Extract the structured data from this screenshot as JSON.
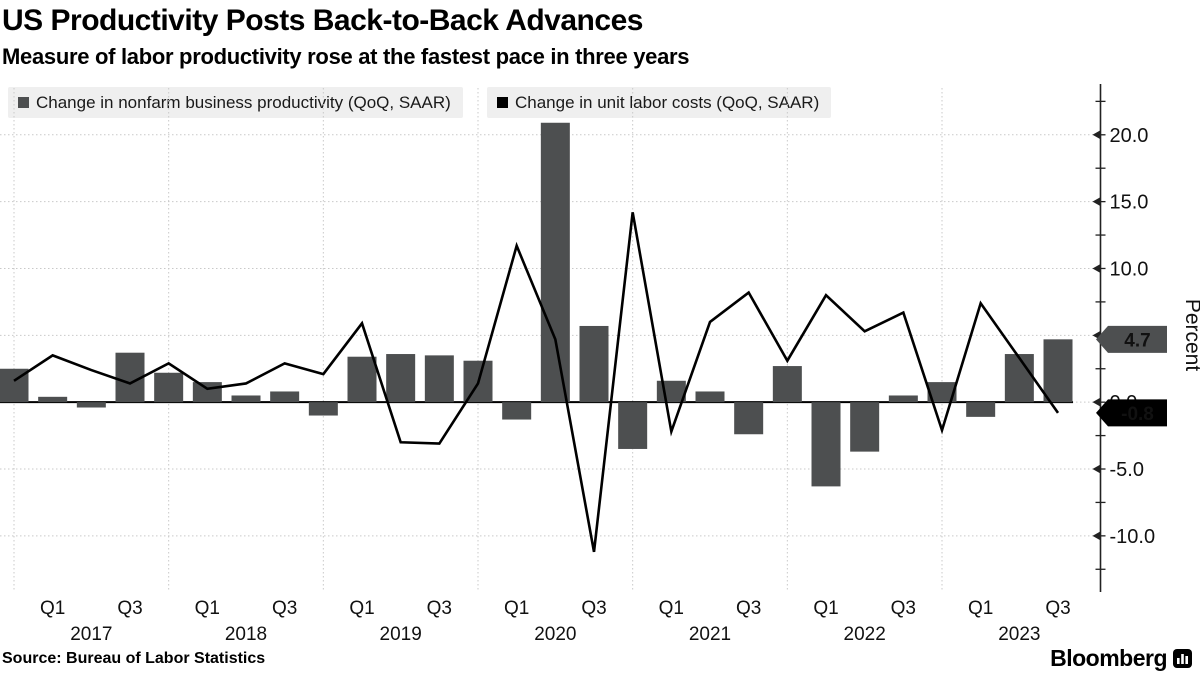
{
  "header": {
    "title": "US Productivity Posts Back-to-Back Advances",
    "subtitle": "Measure of labor productivity rose at the fastest pace in three years"
  },
  "legend": {
    "items": [
      {
        "label": "Change in nonfarm business productivity (QoQ, SAAR)",
        "color": "#4d4f50"
      },
      {
        "label": "Change in unit labor costs (QoQ, SAAR)",
        "color": "#000000"
      }
    ]
  },
  "chart_data": {
    "type": "bar+line",
    "title": "US Productivity Posts Back-to-Back Advances",
    "ylabel": "Percent",
    "ylim": [
      -14.2,
      23.5
    ],
    "grid": true,
    "legend_position": "top",
    "x": [
      "Q4 2016",
      "Q1 2017",
      "Q2 2017",
      "Q3 2017",
      "Q4 2017",
      "Q1 2018",
      "Q2 2018",
      "Q3 2018",
      "Q4 2018",
      "Q1 2019",
      "Q2 2019",
      "Q3 2019",
      "Q4 2019",
      "Q1 2020",
      "Q2 2020",
      "Q3 2020",
      "Q4 2020",
      "Q1 2021",
      "Q2 2021",
      "Q3 2021",
      "Q4 2021",
      "Q1 2022",
      "Q2 2022",
      "Q3 2022",
      "Q4 2022",
      "Q1 2023",
      "Q2 2023",
      "Q3 2023"
    ],
    "series": [
      {
        "name": "Change in nonfarm business productivity (QoQ, SAAR)",
        "type": "bar",
        "color": "#4d4f50",
        "values": [
          2.5,
          0.4,
          -0.4,
          3.7,
          2.2,
          1.5,
          0.5,
          0.8,
          -1.0,
          3.4,
          3.6,
          3.5,
          3.1,
          -1.3,
          20.9,
          5.7,
          -3.5,
          1.6,
          0.8,
          -2.4,
          2.7,
          -6.3,
          -3.7,
          0.5,
          1.5,
          -1.1,
          3.6,
          4.7
        ]
      },
      {
        "name": "Change in unit labor costs (QoQ, SAAR)",
        "type": "line",
        "color": "#000000",
        "values": [
          1.6,
          3.5,
          2.4,
          1.4,
          2.9,
          1.0,
          1.4,
          2.9,
          2.1,
          5.9,
          -3.0,
          -3.1,
          1.4,
          11.7,
          4.7,
          -11.2,
          14.2,
          -2.2,
          6.0,
          8.2,
          3.1,
          8.0,
          5.3,
          6.7,
          -2.1,
          7.4,
          3.3,
          -0.8
        ]
      }
    ],
    "yticks": [
      {
        "label": "20.0",
        "value": 20
      },
      {
        "label": "15.0",
        "value": 15
      },
      {
        "label": "10.0",
        "value": 10
      },
      {
        "label": "5.0",
        "value": 5
      },
      {
        "label": "0.0",
        "value": 0
      },
      {
        "label": "-5.0",
        "value": -5
      },
      {
        "label": "-10.0",
        "value": -10
      }
    ],
    "minor_tick_values": [
      22.5,
      17.5,
      12.5,
      7.5,
      2.5,
      -2.5,
      -7.5,
      -12.5
    ],
    "x_axis": {
      "tick_labels": [
        {
          "label": "Q1",
          "i": 1
        },
        {
          "label": "Q3",
          "i": 3
        },
        {
          "label": "Q1",
          "i": 5
        },
        {
          "label": "Q3",
          "i": 7
        },
        {
          "label": "Q1",
          "i": 9
        },
        {
          "label": "Q3",
          "i": 11
        },
        {
          "label": "Q1",
          "i": 13
        },
        {
          "label": "Q3",
          "i": 15
        },
        {
          "label": "Q1",
          "i": 17
        },
        {
          "label": "Q3",
          "i": 19
        },
        {
          "label": "Q1",
          "i": 21
        },
        {
          "label": "Q3",
          "i": 23
        },
        {
          "label": "Q1",
          "i": 25
        },
        {
          "label": "Q3",
          "i": 27
        }
      ],
      "year_labels": [
        {
          "label": "2017",
          "i": 2
        },
        {
          "label": "2018",
          "i": 6
        },
        {
          "label": "2019",
          "i": 10
        },
        {
          "label": "2020",
          "i": 14
        },
        {
          "label": "2021",
          "i": 18
        },
        {
          "label": "2022",
          "i": 22
        },
        {
          "label": "2023",
          "i": 26
        }
      ],
      "year_boundary_indices": [
        0,
        4,
        8,
        12,
        16,
        20,
        24
      ]
    },
    "end_labels": [
      {
        "text": "4.7",
        "value": 4.7,
        "bg": "#4d4f50",
        "fg": "#ffffff"
      },
      {
        "text": "-0.8",
        "value": -0.8,
        "bg": "#000000",
        "fg": "#ffffff"
      }
    ]
  },
  "source": "Source: Bureau of Labor Statistics",
  "branding": {
    "logo_text": "Bloomberg"
  }
}
